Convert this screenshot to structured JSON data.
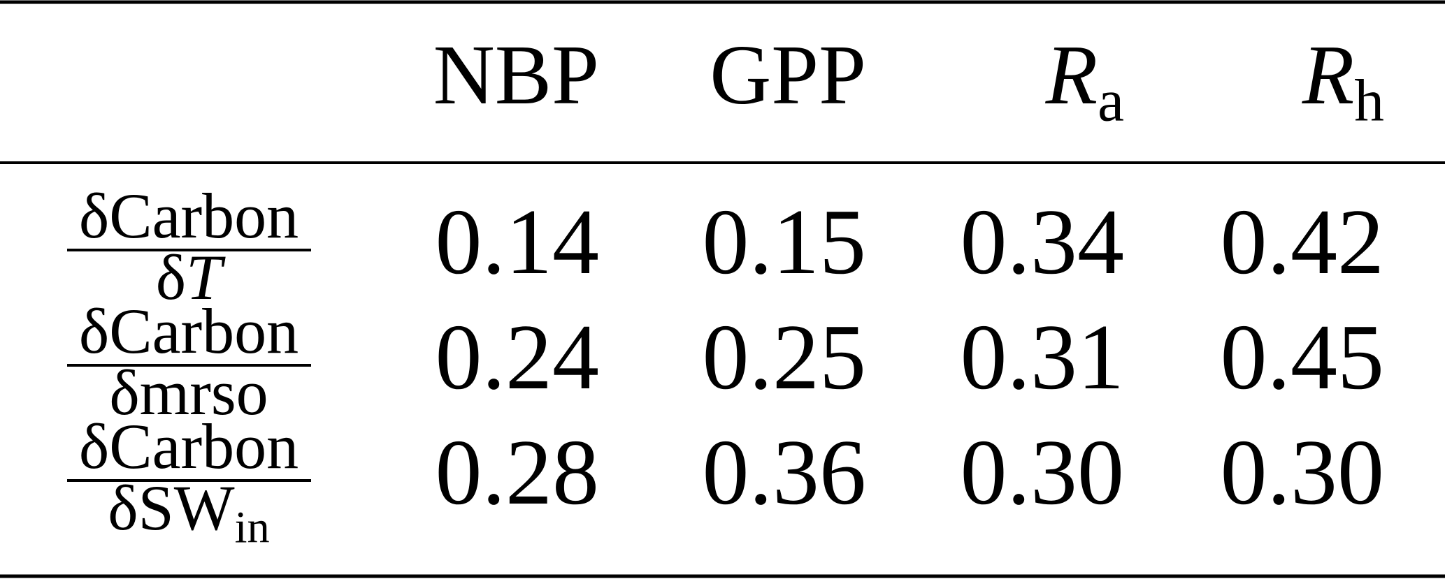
{
  "table": {
    "header": [
      [
        {
          "text": "NBP"
        }
      ],
      [
        {
          "text": "GPP"
        }
      ],
      [
        {
          "text": "R",
          "style": "italic"
        },
        {
          "text": "a",
          "style": "sub"
        }
      ],
      [
        {
          "text": "R",
          "style": "italic"
        },
        {
          "text": "h",
          "style": "sub"
        }
      ]
    ],
    "rows": [
      {
        "numerator": "δCarbon",
        "denominator": [
          {
            "text": "δ"
          },
          {
            "text": "T",
            "style": "italic"
          }
        ],
        "values": [
          "0.14",
          "0.15",
          "0.34",
          "0.42"
        ]
      },
      {
        "numerator": "δCarbon",
        "denominator": [
          {
            "text": "δmrso"
          }
        ],
        "values": [
          "0.24",
          "0.25",
          "0.31",
          "0.45"
        ]
      },
      {
        "numerator": "δCarbon",
        "denominator": [
          {
            "text": "δSW"
          },
          {
            "text": "in",
            "style": "sub"
          }
        ],
        "values": [
          "0.28",
          "0.36",
          "0.30",
          "0.30"
        ]
      }
    ]
  }
}
